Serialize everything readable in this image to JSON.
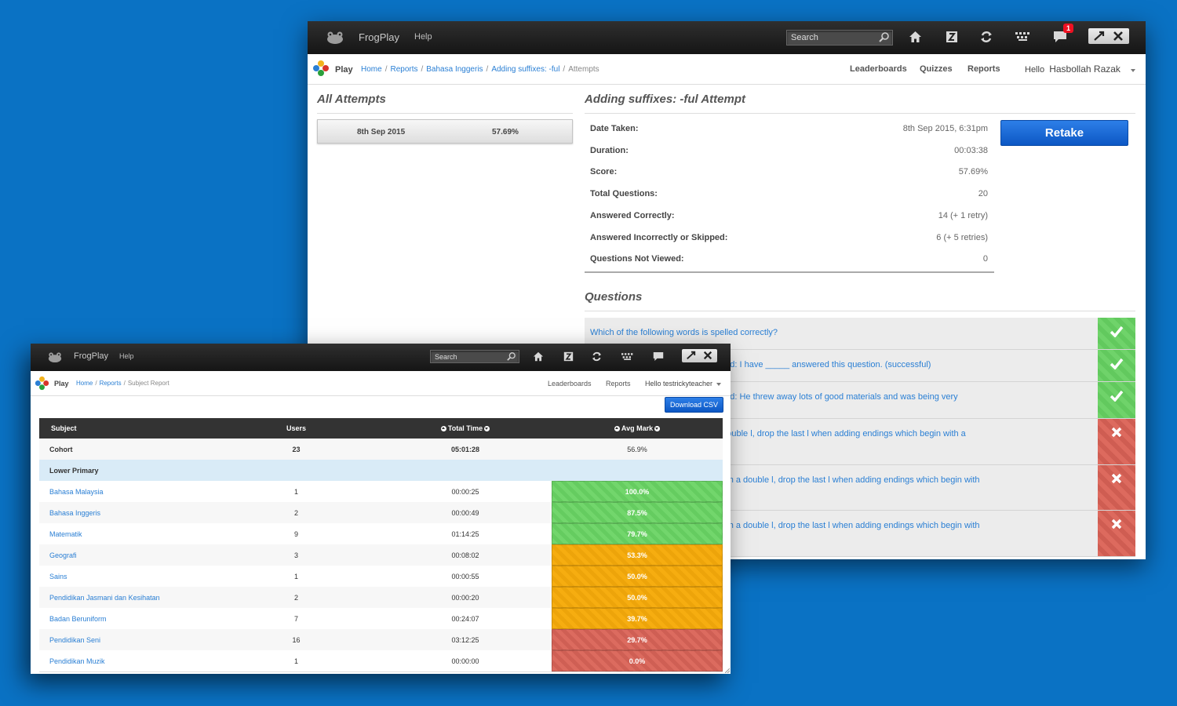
{
  "back": {
    "topbar": {
      "brand": "FrogPlay",
      "help": "Help",
      "search_placeholder": "Search",
      "notification_count": "1"
    },
    "subbar": {
      "play": "Play",
      "breadcrumb": [
        "Home",
        "Reports",
        "Bahasa Inggeris",
        "Adding suffixes: -ful"
      ],
      "breadcrumb_current": "Attempts",
      "menu": [
        "Leaderboards",
        "Quizzes",
        "Reports"
      ],
      "hello": "Hello",
      "user": "Hasbollah Razak"
    },
    "all_attempts": {
      "title": "All Attempts",
      "rows": [
        {
          "date": "8th Sep 2015",
          "score": "57.69%"
        }
      ]
    },
    "attempt": {
      "title": "Adding suffixes: -ful Attempt",
      "retake": "Retake",
      "stats": [
        {
          "label": "Date Taken:",
          "value": "8th Sep 2015, 6:31pm"
        },
        {
          "label": "Duration:",
          "value": "00:03:38"
        },
        {
          "label": "Score:",
          "value": "57.69%"
        },
        {
          "label": "Total Questions:",
          "value": "20"
        },
        {
          "label": "Answered Correctly:",
          "value": "14 (+ 1 retry)"
        },
        {
          "label": "Answered Incorrectly or Skipped:",
          "value": "6 (+ 5 retries)"
        },
        {
          "label": "Questions Not Viewed:",
          "value": "0"
        }
      ]
    },
    "questions": {
      "title": "Questions",
      "items": [
        {
          "text": "Which of the following words is spelled correctly?",
          "status": "correct"
        },
        {
          "text": "nish off this sentence with a '-ful' word: I have _____ answered this question. (successful)",
          "status": "correct"
        },
        {
          "text": "nish off this sentence with a '-ful' word: He threw away lots of good materials and was being very",
          "status": "correct"
        },
        {
          "text": "elow? (Clue: If a word ends with a double l, drop the last l when adding endings which begin with a",
          "status": "incorrect"
        },
        {
          "text": "nce below? (Clue: If a word ends with a double l, drop the last l when adding endings which begin with",
          "status": "incorrect"
        },
        {
          "text": "nce below? (Clue: If a word ends with a double l, drop the last l when adding endings which begin with",
          "status": "incorrect"
        }
      ]
    }
  },
  "front": {
    "topbar": {
      "brand": "FrogPlay",
      "help": "Help",
      "search_placeholder": "Search"
    },
    "subbar": {
      "play": "Play",
      "breadcrumb": [
        "Home",
        "Reports"
      ],
      "breadcrumb_current": "Subject Report",
      "menu": [
        "Leaderboards",
        "Reports"
      ],
      "user": "Hello testrickyteacher"
    },
    "download_csv": "Download CSV",
    "table": {
      "headers": {
        "subject": "Subject",
        "users": "Users",
        "total_time": "Total Time",
        "avg_mark": "Avg Mark"
      },
      "cohort": {
        "subject": "Cohort",
        "users": "23",
        "total_time": "05:01:28",
        "avg_mark": "56.9%"
      },
      "group": "Lower Primary",
      "rows": [
        {
          "subject": "Bahasa Malaysia",
          "users": "1",
          "total_time": "00:00:25",
          "avg_mark": "100.0%",
          "band": "green"
        },
        {
          "subject": "Bahasa Inggeris",
          "users": "2",
          "total_time": "00:00:49",
          "avg_mark": "87.5%",
          "band": "green"
        },
        {
          "subject": "Matematik",
          "users": "9",
          "total_time": "01:14:25",
          "avg_mark": "79.7%",
          "band": "green"
        },
        {
          "subject": "Geografi",
          "users": "3",
          "total_time": "00:08:02",
          "avg_mark": "53.3%",
          "band": "orange"
        },
        {
          "subject": "Sains",
          "users": "1",
          "total_time": "00:00:55",
          "avg_mark": "50.0%",
          "band": "orange"
        },
        {
          "subject": "Pendidikan Jasmani dan Kesihatan",
          "users": "2",
          "total_time": "00:00:20",
          "avg_mark": "50.0%",
          "band": "orange"
        },
        {
          "subject": "Badan Beruniform",
          "users": "7",
          "total_time": "00:24:07",
          "avg_mark": "39.7%",
          "band": "orange"
        },
        {
          "subject": "Pendidikan Seni",
          "users": "16",
          "total_time": "03:12:25",
          "avg_mark": "29.7%",
          "band": "red"
        },
        {
          "subject": "Pendidikan Muzik",
          "users": "1",
          "total_time": "00:00:00",
          "avg_mark": "0.0%",
          "band": "red"
        }
      ]
    }
  },
  "colors": {
    "background": "#0a72c4",
    "green": "#6fd36a",
    "orange": "#f4a90a",
    "red": "#d9685c",
    "link": "#2a7fd4",
    "button": "#0c57c4"
  }
}
